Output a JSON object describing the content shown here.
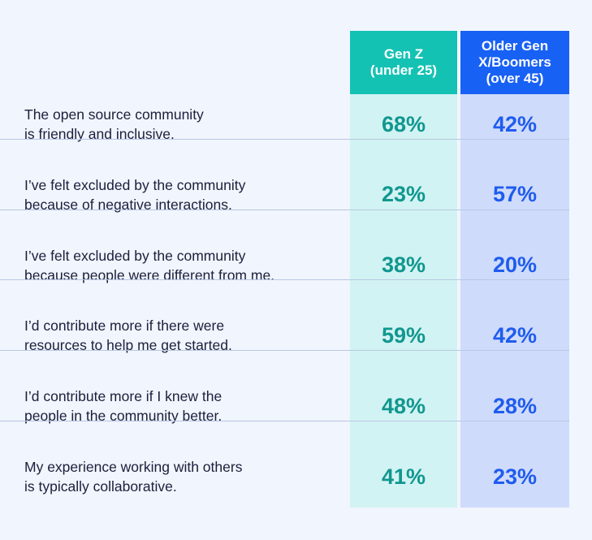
{
  "chart_data": {
    "type": "table",
    "columns": [
      "Gen Z\n(under 25)",
      "Older Gen\nX/Boomers\n(over 45)"
    ],
    "rows": [
      {
        "label": "The open source community\nis friendly and inclusive.",
        "values": [
          "68%",
          "42%"
        ]
      },
      {
        "label": "I’ve felt excluded by the community\nbecause of negative interactions.",
        "values": [
          "23%",
          "57%"
        ]
      },
      {
        "label": "I’ve felt excluded by the community\nbecause people were different from me.",
        "values": [
          "38%",
          "20%"
        ]
      },
      {
        "label": "I’d contribute more if there were\nresources to help me get started.",
        "values": [
          "59%",
          "42%"
        ]
      },
      {
        "label": "I’d contribute more if I knew the\npeople in the community better.",
        "values": [
          "48%",
          "28%"
        ]
      },
      {
        "label": "My experience working with others\nis typically collaborative.",
        "values": [
          "41%",
          "23%"
        ]
      }
    ],
    "colors": {
      "gen_z_header": "#14c2b4",
      "gen_z_column": "#d2f3f3",
      "gen_z_value": "#11978f",
      "older_header": "#1861f5",
      "older_column": "#cfdbfb",
      "older_value": "#1f5cee",
      "background": "#f1f5fd",
      "divider": "#b9c7e3"
    }
  }
}
